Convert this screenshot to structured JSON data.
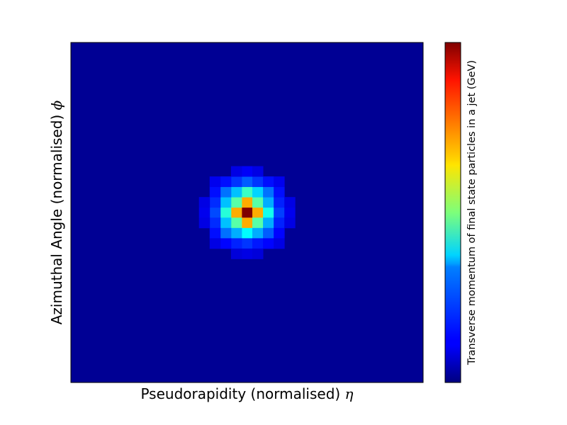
{
  "chart_data": {
    "type": "heatmap",
    "title": "",
    "xlabel": "Pseudorapidity (normalised)",
    "xlabel_symbol": "η",
    "ylabel": "Azimuthal Angle (normalised)",
    "ylabel_symbol": "ϕ",
    "colorbar_label": "Transverse momentum of final state particles in a jet (GeV)",
    "colormap": "jet",
    "ticks": "none",
    "grid": false,
    "grid_size": [
      33,
      33
    ],
    "peak_cell": [
      16,
      16
    ],
    "cells": [
      {
        "x": 16,
        "y": 16,
        "v": 1.0
      },
      {
        "x": 15,
        "y": 16,
        "v": 0.7
      },
      {
        "x": 17,
        "y": 16,
        "v": 0.7
      },
      {
        "x": 16,
        "y": 15,
        "v": 0.7
      },
      {
        "x": 16,
        "y": 17,
        "v": 0.7
      },
      {
        "x": 15,
        "y": 15,
        "v": 0.45
      },
      {
        "x": 17,
        "y": 15,
        "v": 0.45
      },
      {
        "x": 15,
        "y": 17,
        "v": 0.45
      },
      {
        "x": 17,
        "y": 17,
        "v": 0.45
      },
      {
        "x": 14,
        "y": 16,
        "v": 0.4
      },
      {
        "x": 18,
        "y": 16,
        "v": 0.38
      },
      {
        "x": 16,
        "y": 14,
        "v": 0.42
      },
      {
        "x": 16,
        "y": 18,
        "v": 0.36
      },
      {
        "x": 14,
        "y": 15,
        "v": 0.3
      },
      {
        "x": 18,
        "y": 15,
        "v": 0.28
      },
      {
        "x": 14,
        "y": 17,
        "v": 0.3
      },
      {
        "x": 18,
        "y": 17,
        "v": 0.28
      },
      {
        "x": 15,
        "y": 14,
        "v": 0.3
      },
      {
        "x": 17,
        "y": 14,
        "v": 0.32
      },
      {
        "x": 15,
        "y": 18,
        "v": 0.28
      },
      {
        "x": 17,
        "y": 18,
        "v": 0.28
      },
      {
        "x": 14,
        "y": 14,
        "v": 0.22
      },
      {
        "x": 18,
        "y": 14,
        "v": 0.22
      },
      {
        "x": 14,
        "y": 18,
        "v": 0.22
      },
      {
        "x": 18,
        "y": 18,
        "v": 0.2
      },
      {
        "x": 13,
        "y": 16,
        "v": 0.18
      },
      {
        "x": 19,
        "y": 16,
        "v": 0.17
      },
      {
        "x": 16,
        "y": 13,
        "v": 0.2
      },
      {
        "x": 16,
        "y": 19,
        "v": 0.16
      },
      {
        "x": 13,
        "y": 15,
        "v": 0.15
      },
      {
        "x": 19,
        "y": 15,
        "v": 0.14
      },
      {
        "x": 13,
        "y": 17,
        "v": 0.15
      },
      {
        "x": 19,
        "y": 17,
        "v": 0.14
      },
      {
        "x": 15,
        "y": 13,
        "v": 0.16
      },
      {
        "x": 17,
        "y": 13,
        "v": 0.16
      },
      {
        "x": 15,
        "y": 19,
        "v": 0.14
      },
      {
        "x": 17,
        "y": 19,
        "v": 0.13
      },
      {
        "x": 13,
        "y": 14,
        "v": 0.12
      },
      {
        "x": 19,
        "y": 14,
        "v": 0.12
      },
      {
        "x": 13,
        "y": 18,
        "v": 0.12
      },
      {
        "x": 19,
        "y": 18,
        "v": 0.11
      },
      {
        "x": 14,
        "y": 13,
        "v": 0.12
      },
      {
        "x": 18,
        "y": 13,
        "v": 0.12
      },
      {
        "x": 14,
        "y": 19,
        "v": 0.11
      },
      {
        "x": 18,
        "y": 19,
        "v": 0.11
      },
      {
        "x": 12,
        "y": 16,
        "v": 0.09
      },
      {
        "x": 20,
        "y": 16,
        "v": 0.09
      },
      {
        "x": 16,
        "y": 12,
        "v": 0.1
      },
      {
        "x": 16,
        "y": 20,
        "v": 0.08
      },
      {
        "x": 12,
        "y": 15,
        "v": 0.08
      },
      {
        "x": 20,
        "y": 15,
        "v": 0.08
      },
      {
        "x": 12,
        "y": 17,
        "v": 0.08
      },
      {
        "x": 20,
        "y": 17,
        "v": 0.08
      },
      {
        "x": 15,
        "y": 12,
        "v": 0.08
      },
      {
        "x": 17,
        "y": 12,
        "v": 0.08
      },
      {
        "x": 15,
        "y": 20,
        "v": 0.07
      },
      {
        "x": 17,
        "y": 20,
        "v": 0.07
      },
      {
        "x": 13,
        "y": 13,
        "v": 0.09
      },
      {
        "x": 19,
        "y": 13,
        "v": 0.09
      },
      {
        "x": 13,
        "y": 19,
        "v": 0.08
      },
      {
        "x": 19,
        "y": 19,
        "v": 0.08
      }
    ],
    "vmin": 0,
    "vmax": 1
  }
}
